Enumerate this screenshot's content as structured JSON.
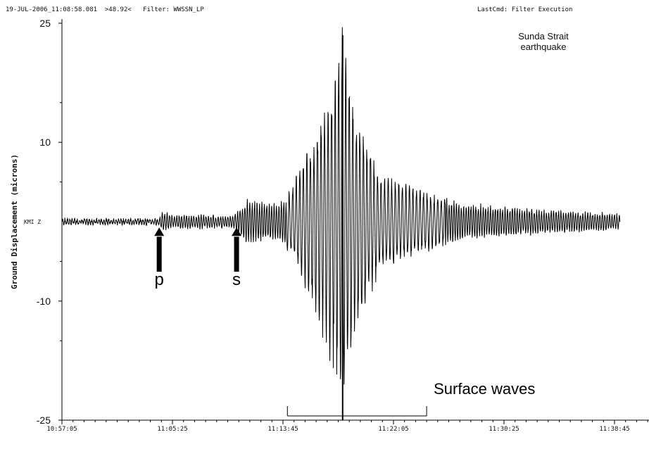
{
  "header": {
    "left": "19-JUL-2006_11:08:58.081  >48.92<   Filter: WWSSN_LP",
    "right": "LastCmd: Filter Execution"
  },
  "chart_data": {
    "type": "line",
    "title_lines": [
      "Sunda Strait",
      "earthquake"
    ],
    "ylabel": "Ground Displacement (microns)",
    "station_label": "KMI Z",
    "ylim": [
      -25,
      25
    ],
    "y_ticks": [
      {
        "value": 25,
        "label": "25"
      },
      {
        "value": 10,
        "label": "10"
      },
      {
        "value": -10,
        "label": "-10"
      },
      {
        "value": -25,
        "label": "-25"
      }
    ],
    "x_ticks": [
      "10:57:05",
      "11:05:25",
      "11:13:45",
      "11:22:05",
      "11:30:25",
      "11:38:45"
    ],
    "annotations": {
      "p": {
        "label": "p",
        "time": "11:04:25"
      },
      "s": {
        "label": "s",
        "time": "11:10:15"
      },
      "surface": {
        "label": "Surface waves",
        "start": "11:14:05",
        "end": "11:24:35"
      }
    },
    "series": [
      {
        "envelope": [
          {
            "t": "10:57:05",
            "amp": 0.3
          },
          {
            "t": "11:04:20",
            "amp": 0.3
          },
          {
            "t": "11:04:40",
            "amp": 1.2
          },
          {
            "t": "11:05:30",
            "amp": 0.8
          },
          {
            "t": "11:10:00",
            "amp": 0.7
          },
          {
            "t": "11:11:00",
            "amp": 2.5
          },
          {
            "t": "11:13:30",
            "amp": 2.2
          },
          {
            "t": "11:14:30",
            "amp": 4.5
          },
          {
            "t": "11:16:00",
            "amp": 10
          },
          {
            "t": "11:17:30",
            "amp": 17
          },
          {
            "t": "11:18:15",
            "amp": 23
          },
          {
            "t": "11:19:00",
            "amp": 15
          },
          {
            "t": "11:21:00",
            "amp": 6
          },
          {
            "t": "11:24:00",
            "amp": 4
          },
          {
            "t": "11:27:00",
            "amp": 2.2
          },
          {
            "t": "11:32:00",
            "amp": 1.6
          },
          {
            "t": "11:39:10",
            "amp": 0.9
          }
        ]
      }
    ]
  }
}
